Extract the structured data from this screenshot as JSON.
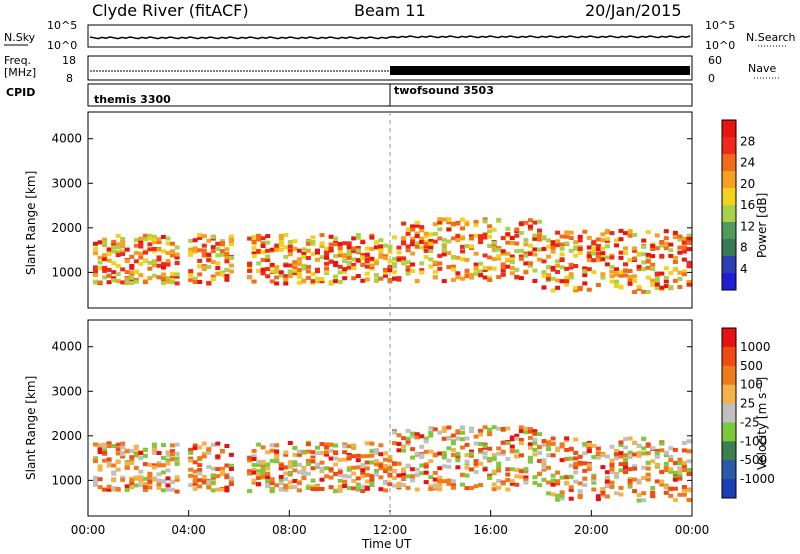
{
  "header": {
    "station": "Clyde River (fitACF)",
    "beam": "Beam 11",
    "date": "20/Jan/2015"
  },
  "colors": {
    "power_scale": [
      "#1f1fd6",
      "#2b3fb0",
      "#3a7a52",
      "#4f9c5a",
      "#a8d24a",
      "#f2d21c",
      "#f5a020",
      "#f26a1a",
      "#ef2a1a",
      "#e8140f"
    ],
    "velocity_scale": [
      "#1a3fb5",
      "#2b5ba8",
      "#3a7f4e",
      "#7ec83c",
      "#c0c0c0",
      "#f5b24a",
      "#f07a1a",
      "#ee4a14",
      "#e81010"
    ]
  },
  "chart_data": [
    {
      "panel": "noise",
      "type": "line",
      "left_label": "N.Sky",
      "right_label": "N.Search",
      "left_ticks": [
        "10^5",
        "10^0"
      ],
      "right_ticks": [
        "10^5",
        "10^0"
      ]
    },
    {
      "panel": "frequency",
      "type": "line",
      "left_label_top": "Freq.",
      "left_label_bottom": "[MHz]",
      "right_label": "Nave",
      "left_ticks": [
        "18",
        "8"
      ],
      "right_ticks": [
        "60",
        "0"
      ]
    },
    {
      "panel": "cpid",
      "type": "table",
      "label": "CPID",
      "segments": [
        {
          "name": "themis 3300",
          "start_hour": 0
        },
        {
          "name": "twofsound 3503",
          "start_hour": 12
        }
      ]
    },
    {
      "panel": "power",
      "type": "heatmap",
      "ylabel": "Slant Range [km]",
      "ylim": [
        200,
        4600
      ],
      "yticks": [
        1000,
        2000,
        3000,
        4000
      ],
      "colorbar_label": "Power [dB]",
      "colorbar_ticks": [
        28,
        24,
        20,
        16,
        12,
        8,
        4
      ]
    },
    {
      "panel": "velocity",
      "type": "heatmap",
      "ylabel": "Slant Range [km]",
      "ylim": [
        200,
        4600
      ],
      "yticks": [
        1000,
        2000,
        3000,
        4000
      ],
      "colorbar_label": "Velocity [m s⁻¹]",
      "colorbar_ticks": [
        1000,
        500,
        100,
        25,
        -25,
        -100,
        -500,
        -1000
      ],
      "xlabel": "Time UT",
      "xticks": [
        "00:00",
        "04:00",
        "08:00",
        "12:00",
        "16:00",
        "20:00",
        "00:00"
      ],
      "xlim": [
        0,
        24
      ]
    }
  ]
}
